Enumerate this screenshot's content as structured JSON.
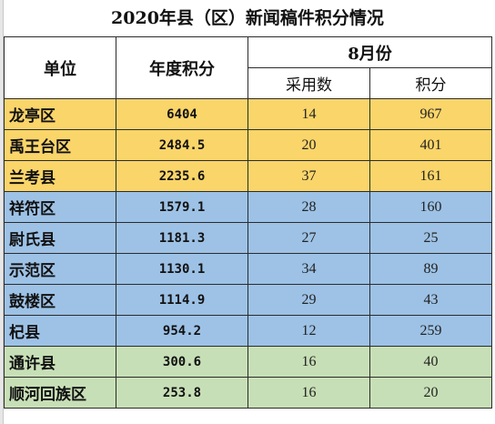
{
  "title": "2020年县（区）新闻稿件积分情况",
  "headers": {
    "unit": "单位",
    "annual_score": "年度积分",
    "month_group": "8月份",
    "adopted_count": "采用数",
    "score": "积分"
  },
  "colors": {
    "yellow": "#fad56a",
    "blue": "#9dc2e6",
    "green": "#c7dfb6"
  },
  "rows": [
    {
      "unit": "龙亭区",
      "annual": "6404",
      "adopted": "14",
      "points": "967",
      "group": "yellow"
    },
    {
      "unit": "禹王台区",
      "annual": "2484.5",
      "adopted": "20",
      "points": "401",
      "group": "yellow"
    },
    {
      "unit": "兰考县",
      "annual": "2235.6",
      "adopted": "37",
      "points": "161",
      "group": "yellow"
    },
    {
      "unit": "祥符区",
      "annual": "1579.1",
      "adopted": "28",
      "points": "160",
      "group": "blue"
    },
    {
      "unit": "尉氏县",
      "annual": "1181.3",
      "adopted": "27",
      "points": "25",
      "group": "blue"
    },
    {
      "unit": "示范区",
      "annual": "1130.1",
      "adopted": "34",
      "points": "89",
      "group": "blue"
    },
    {
      "unit": "鼓楼区",
      "annual": "1114.9",
      "adopted": "29",
      "points": "43",
      "group": "blue"
    },
    {
      "unit": "杞县",
      "annual": "954.2",
      "adopted": "12",
      "points": "259",
      "group": "blue"
    },
    {
      "unit": "通许县",
      "annual": "300.6",
      "adopted": "16",
      "points": "40",
      "group": "green"
    },
    {
      "unit": "顺河回族区",
      "annual": "253.8",
      "adopted": "16",
      "points": "20",
      "group": "green"
    }
  ]
}
